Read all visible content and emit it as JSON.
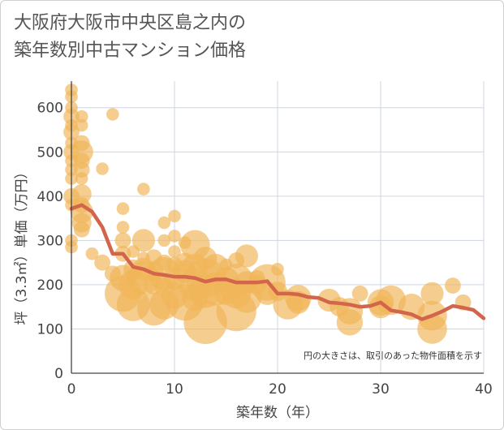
{
  "chart_data": {
    "type": "scatter",
    "title": "大阪府大阪市中央区島之内の築年数別中古マンション価格",
    "title_lines": [
      "大阪府大阪市中央区島之内の",
      "築年数別中古マンション価格"
    ],
    "xlabel": "築年数（年）",
    "ylabel": "坪（3.3㎡）単価（万円）",
    "note": "円の大きさは、取引のあった物件面積を示す",
    "xlim": [
      0,
      40
    ],
    "ylim": [
      0,
      660
    ],
    "xticks": [
      0,
      10,
      20,
      30,
      40
    ],
    "yticks": [
      0,
      100,
      200,
      300,
      400,
      500,
      600
    ],
    "grid": true,
    "colors": {
      "bubble": "#f0b558",
      "line": "#d2654b",
      "grid": "#cfd6e0"
    },
    "series": [
      {
        "type": "bubble",
        "points": [
          {
            "x": 0,
            "y": 640,
            "s": 3
          },
          {
            "x": 0,
            "y": 625,
            "s": 3
          },
          {
            "x": 0,
            "y": 600,
            "s": 3
          },
          {
            "x": 0,
            "y": 580,
            "s": 4
          },
          {
            "x": 0,
            "y": 560,
            "s": 3
          },
          {
            "x": 0,
            "y": 545,
            "s": 4
          },
          {
            "x": 0,
            "y": 520,
            "s": 3
          },
          {
            "x": 0,
            "y": 500,
            "s": 4
          },
          {
            "x": 0,
            "y": 480,
            "s": 3
          },
          {
            "x": 0,
            "y": 460,
            "s": 3
          },
          {
            "x": 0,
            "y": 440,
            "s": 3
          },
          {
            "x": 0,
            "y": 400,
            "s": 4
          },
          {
            "x": 0,
            "y": 380,
            "s": 3
          },
          {
            "x": 0,
            "y": 300,
            "s": 3
          },
          {
            "x": 0,
            "y": 285,
            "s": 3
          },
          {
            "x": 1,
            "y": 580,
            "s": 3
          },
          {
            "x": 1,
            "y": 560,
            "s": 3
          },
          {
            "x": 1,
            "y": 520,
            "s": 4
          },
          {
            "x": 1,
            "y": 500,
            "s": 6
          },
          {
            "x": 1,
            "y": 480,
            "s": 4
          },
          {
            "x": 1,
            "y": 460,
            "s": 4
          },
          {
            "x": 1,
            "y": 440,
            "s": 3
          },
          {
            "x": 1,
            "y": 405,
            "s": 5
          },
          {
            "x": 1,
            "y": 380,
            "s": 4
          },
          {
            "x": 1,
            "y": 365,
            "s": 6
          },
          {
            "x": 1,
            "y": 340,
            "s": 5
          },
          {
            "x": 1,
            "y": 325,
            "s": 4
          },
          {
            "x": 2,
            "y": 270,
            "s": 3
          },
          {
            "x": 3,
            "y": 462,
            "s": 3
          },
          {
            "x": 3,
            "y": 250,
            "s": 4
          },
          {
            "x": 4,
            "y": 585,
            "s": 3
          },
          {
            "x": 4,
            "y": 225,
            "s": 4
          },
          {
            "x": 5,
            "y": 372,
            "s": 3
          },
          {
            "x": 5,
            "y": 330,
            "s": 3
          },
          {
            "x": 5,
            "y": 300,
            "s": 4
          },
          {
            "x": 5,
            "y": 270,
            "s": 4
          },
          {
            "x": 5,
            "y": 215,
            "s": 7
          },
          {
            "x": 5,
            "y": 180,
            "s": 10
          },
          {
            "x": 6,
            "y": 275,
            "s": 3
          },
          {
            "x": 6,
            "y": 235,
            "s": 5
          },
          {
            "x": 6,
            "y": 200,
            "s": 8
          },
          {
            "x": 6,
            "y": 155,
            "s": 9
          },
          {
            "x": 7,
            "y": 416,
            "s": 3
          },
          {
            "x": 7,
            "y": 300,
            "s": 6
          },
          {
            "x": 7,
            "y": 260,
            "s": 3
          },
          {
            "x": 7,
            "y": 235,
            "s": 6
          },
          {
            "x": 7,
            "y": 215,
            "s": 9
          },
          {
            "x": 8,
            "y": 262,
            "s": 4
          },
          {
            "x": 8,
            "y": 230,
            "s": 5
          },
          {
            "x": 8,
            "y": 200,
            "s": 5
          },
          {
            "x": 8,
            "y": 145,
            "s": 9
          },
          {
            "x": 9,
            "y": 340,
            "s": 3
          },
          {
            "x": 9,
            "y": 300,
            "s": 3
          },
          {
            "x": 9,
            "y": 250,
            "s": 4
          },
          {
            "x": 9,
            "y": 225,
            "s": 9
          },
          {
            "x": 9,
            "y": 195,
            "s": 5
          },
          {
            "x": 9,
            "y": 155,
            "s": 8
          },
          {
            "x": 10,
            "y": 355,
            "s": 3
          },
          {
            "x": 10,
            "y": 310,
            "s": 3
          },
          {
            "x": 10,
            "y": 275,
            "s": 3
          },
          {
            "x": 10,
            "y": 245,
            "s": 4
          },
          {
            "x": 10,
            "y": 215,
            "s": 6
          },
          {
            "x": 10,
            "y": 175,
            "s": 7
          },
          {
            "x": 11,
            "y": 295,
            "s": 3
          },
          {
            "x": 11,
            "y": 250,
            "s": 5
          },
          {
            "x": 11,
            "y": 230,
            "s": 6
          },
          {
            "x": 11,
            "y": 160,
            "s": 10
          },
          {
            "x": 12,
            "y": 290,
            "s": 8
          },
          {
            "x": 12,
            "y": 240,
            "s": 7
          },
          {
            "x": 12,
            "y": 200,
            "s": 9
          },
          {
            "x": 12,
            "y": 170,
            "s": 7
          },
          {
            "x": 13,
            "y": 260,
            "s": 6
          },
          {
            "x": 13,
            "y": 215,
            "s": 11
          },
          {
            "x": 13,
            "y": 185,
            "s": 9
          },
          {
            "x": 13,
            "y": 115,
            "s": 12
          },
          {
            "x": 14,
            "y": 240,
            "s": 7
          },
          {
            "x": 14,
            "y": 190,
            "s": 9
          },
          {
            "x": 15,
            "y": 245,
            "s": 3
          },
          {
            "x": 15,
            "y": 210,
            "s": 7
          },
          {
            "x": 15,
            "y": 180,
            "s": 6
          },
          {
            "x": 16,
            "y": 255,
            "s": 4
          },
          {
            "x": 16,
            "y": 210,
            "s": 9
          },
          {
            "x": 16,
            "y": 180,
            "s": 8
          },
          {
            "x": 16,
            "y": 140,
            "s": 11
          },
          {
            "x": 17,
            "y": 265,
            "s": 6
          },
          {
            "x": 17,
            "y": 205,
            "s": 6
          },
          {
            "x": 17,
            "y": 170,
            "s": 8
          },
          {
            "x": 18,
            "y": 215,
            "s": 4
          },
          {
            "x": 18,
            "y": 200,
            "s": 5
          },
          {
            "x": 19,
            "y": 205,
            "s": 10
          },
          {
            "x": 19,
            "y": 180,
            "s": 6
          },
          {
            "x": 20,
            "y": 235,
            "s": 3
          },
          {
            "x": 20,
            "y": 185,
            "s": 5
          },
          {
            "x": 21,
            "y": 155,
            "s": 8
          },
          {
            "x": 22,
            "y": 170,
            "s": 7
          },
          {
            "x": 22,
            "y": 160,
            "s": 6
          },
          {
            "x": 25,
            "y": 165,
            "s": 6
          },
          {
            "x": 26,
            "y": 150,
            "s": 5
          },
          {
            "x": 27,
            "y": 140,
            "s": 7
          },
          {
            "x": 27,
            "y": 115,
            "s": 7
          },
          {
            "x": 28,
            "y": 180,
            "s": 4
          },
          {
            "x": 30,
            "y": 160,
            "s": 7
          },
          {
            "x": 30,
            "y": 150,
            "s": 6
          },
          {
            "x": 31,
            "y": 165,
            "s": 8
          },
          {
            "x": 33,
            "y": 150,
            "s": 7
          },
          {
            "x": 35,
            "y": 180,
            "s": 6
          },
          {
            "x": 35,
            "y": 130,
            "s": 8
          },
          {
            "x": 35,
            "y": 100,
            "s": 8
          },
          {
            "x": 37,
            "y": 198,
            "s": 4
          },
          {
            "x": 38,
            "y": 160,
            "s": 4
          }
        ]
      },
      {
        "type": "line",
        "x": [
          0,
          1,
          2,
          3,
          4,
          5,
          6,
          7,
          8,
          9,
          10,
          11,
          12,
          13,
          14,
          15,
          16,
          17,
          18,
          19,
          20,
          21,
          22,
          23,
          24,
          25,
          26,
          27,
          28,
          29,
          30,
          31,
          32,
          33,
          34,
          35,
          36,
          37,
          38,
          39,
          40
        ],
        "y": [
          372,
          380,
          365,
          330,
          270,
          270,
          240,
          235,
          225,
          222,
          218,
          218,
          215,
          207,
          212,
          212,
          205,
          205,
          205,
          208,
          180,
          180,
          178,
          172,
          170,
          160,
          158,
          155,
          150,
          152,
          160,
          142,
          138,
          133,
          122,
          130,
          140,
          152,
          148,
          143,
          124
        ]
      }
    ]
  }
}
